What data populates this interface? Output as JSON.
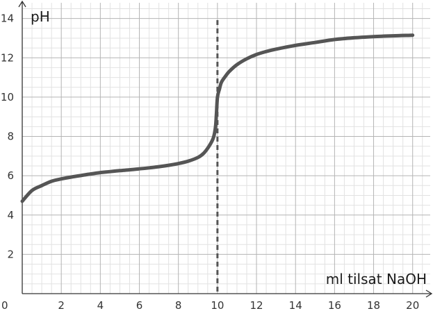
{
  "chart_data": {
    "type": "line",
    "title": "",
    "xlabel": "ml tilsat NaOH",
    "ylabel": "pH",
    "xlim": [
      0,
      20.9
    ],
    "ylim": [
      0,
      14.8
    ],
    "x_ticks": [
      0,
      2,
      4,
      6,
      8,
      10,
      12,
      14,
      16,
      18,
      20
    ],
    "y_ticks": [
      2,
      4,
      6,
      8,
      10,
      12,
      14
    ],
    "minor_step": 0.5,
    "grid": true,
    "equivalence_line": {
      "x": 10,
      "style": "dashed"
    },
    "series": [
      {
        "x": [
          0,
          0.5,
          1,
          1.5,
          2,
          2.5,
          3,
          3.5,
          4,
          4.5,
          5,
          5.5,
          6,
          6.5,
          7,
          7.5,
          8,
          8.5,
          9,
          9.3,
          9.6,
          9.8,
          9.9,
          9.95,
          10,
          10.1,
          10.2,
          10.4,
          10.6,
          11,
          11.5,
          12,
          12.5,
          13,
          14,
          15,
          16,
          17,
          18,
          19,
          20
        ],
        "values": [
          4.7,
          5.25,
          5.5,
          5.72,
          5.84,
          5.93,
          6.01,
          6.09,
          6.16,
          6.21,
          6.26,
          6.3,
          6.35,
          6.4,
          6.46,
          6.53,
          6.62,
          6.74,
          6.93,
          7.15,
          7.55,
          7.95,
          8.5,
          9.2,
          10.0,
          10.4,
          10.75,
          11.05,
          11.3,
          11.65,
          11.95,
          12.17,
          12.32,
          12.44,
          12.63,
          12.78,
          12.93,
          13.02,
          13.08,
          13.12,
          13.15
        ],
        "color": "#555555"
      }
    ],
    "colors": {
      "minor_grid": "#e2e2e2",
      "major_grid": "#b4b4b4",
      "axis": "#333333",
      "dashed_line": "#555555"
    }
  }
}
